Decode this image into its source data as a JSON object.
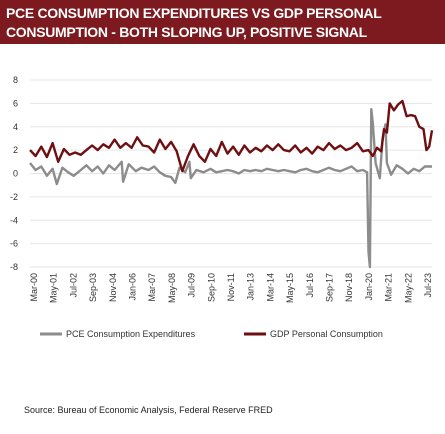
{
  "title": {
    "line1": "PCE CONSUMPTION EXPENDITURES VS GDP PERSONAL",
    "line2": "CONSUMPTION - BOTH SLOPING UP, POSITIVE SIGNAL"
  },
  "source": "Source: Bureau of Economic Analysis, Federal Reserve FRED",
  "colors": {
    "title_band": "#7d1a1f",
    "pce": "#8c8c8c",
    "gdp": "#6e0f12"
  },
  "chart_data": {
    "type": "line",
    "ylim": [
      -8,
      8
    ],
    "yticks": [
      "8",
      "6",
      "4",
      "2",
      "0",
      "-2",
      "-4",
      "-6",
      "-8"
    ],
    "x_tick_labels": [
      "Mar-00",
      "May-01",
      "Jul-02",
      "Sep-03",
      "Nov-04",
      "Jan-06",
      "Mar-07",
      "May-08",
      "Jul-09",
      "Sep-10",
      "Nov-11",
      "Jan-13",
      "Mar-14",
      "May-15",
      "Jul-16",
      "Sep-17",
      "Nov-18",
      "Jan-20",
      "Mar-21",
      "May-22",
      "Jul-23"
    ],
    "grid": true,
    "legend_position": "bottom",
    "x_start": "2000-03",
    "x_end": "2023-12",
    "series": [
      {
        "name": "PCE Consumption Expenditures",
        "color": "#8c8c8c",
        "points": [
          [
            "2000-03",
            0.9
          ],
          [
            "2000-07",
            0.3
          ],
          [
            "2000-11",
            0.6
          ],
          [
            "2001-03",
            -0.2
          ],
          [
            "2001-07",
            0.4
          ],
          [
            "2001-10",
            -0.9
          ],
          [
            "2002-02",
            0.5
          ],
          [
            "2002-06",
            0.1
          ],
          [
            "2002-10",
            -0.2
          ],
          [
            "2003-03",
            0.3
          ],
          [
            "2003-07",
            0.7
          ],
          [
            "2003-11",
            0.2
          ],
          [
            "2004-03",
            0.6
          ],
          [
            "2004-07",
            0.0
          ],
          [
            "2004-11",
            0.7
          ],
          [
            "2005-03",
            0.3
          ],
          [
            "2005-08",
            1.0
          ],
          [
            "2005-09",
            -0.7
          ],
          [
            "2006-01",
            0.8
          ],
          [
            "2006-06",
            0.2
          ],
          [
            "2006-10",
            0.5
          ],
          [
            "2007-03",
            0.3
          ],
          [
            "2007-07",
            0.6
          ],
          [
            "2007-11",
            0.1
          ],
          [
            "2008-03",
            -0.2
          ],
          [
            "2008-07",
            -0.3
          ],
          [
            "2008-10",
            -0.8
          ],
          [
            "2009-01",
            0.5
          ],
          [
            "2009-05",
            0.1
          ],
          [
            "2009-08",
            1.0
          ],
          [
            "2009-09",
            -0.4
          ],
          [
            "2010-01",
            0.3
          ],
          [
            "2010-06",
            0.1
          ],
          [
            "2010-11",
            0.4
          ],
          [
            "2011-03",
            0.1
          ],
          [
            "2011-07",
            0.2
          ],
          [
            "2011-11",
            0.3
          ],
          [
            "2012-03",
            0.2
          ],
          [
            "2012-07",
            0.0
          ],
          [
            "2012-11",
            0.3
          ],
          [
            "2013-03",
            0.2
          ],
          [
            "2013-07",
            0.3
          ],
          [
            "2013-11",
            0.2
          ],
          [
            "2014-03",
            0.4
          ],
          [
            "2014-07",
            0.3
          ],
          [
            "2014-11",
            0.2
          ],
          [
            "2015-03",
            0.3
          ],
          [
            "2015-07",
            0.2
          ],
          [
            "2015-11",
            0.1
          ],
          [
            "2016-03",
            0.3
          ],
          [
            "2016-07",
            0.4
          ],
          [
            "2016-11",
            0.2
          ],
          [
            "2017-03",
            0.1
          ],
          [
            "2017-07",
            0.3
          ],
          [
            "2017-11",
            0.5
          ],
          [
            "2018-03",
            0.3
          ],
          [
            "2018-07",
            0.2
          ],
          [
            "2018-11",
            0.4
          ],
          [
            "2019-03",
            0.6
          ],
          [
            "2019-07",
            0.2
          ],
          [
            "2019-11",
            0.3
          ],
          [
            "2020-02",
            0.1
          ],
          [
            "2020-03",
            -6.7
          ],
          [
            "2020-04",
            -12.0
          ],
          [
            "2020-05",
            5.5
          ],
          [
            "2020-06",
            4.3
          ],
          [
            "2020-08",
            0.9
          ],
          [
            "2020-11",
            -0.4
          ],
          [
            "2021-01",
            3.0
          ],
          [
            "2021-03",
            4.2
          ],
          [
            "2021-04",
            0.9
          ],
          [
            "2021-07",
            -0.1
          ],
          [
            "2021-11",
            0.7
          ],
          [
            "2022-03",
            0.4
          ],
          [
            "2022-07",
            0.0
          ],
          [
            "2022-11",
            0.4
          ],
          [
            "2023-03",
            0.2
          ],
          [
            "2023-07",
            0.6
          ],
          [
            "2023-12",
            0.6
          ]
        ]
      },
      {
        "name": "GDP Personal Consumption",
        "color": "#6e0f12",
        "points": [
          [
            "2000-03",
            2.0
          ],
          [
            "2000-07",
            1.5
          ],
          [
            "2000-11",
            2.3
          ],
          [
            "2001-03",
            1.4
          ],
          [
            "2001-07",
            2.6
          ],
          [
            "2001-11",
            1.0
          ],
          [
            "2002-03",
            2.1
          ],
          [
            "2002-07",
            1.6
          ],
          [
            "2002-11",
            1.8
          ],
          [
            "2003-03",
            1.6
          ],
          [
            "2003-07",
            2.0
          ],
          [
            "2003-11",
            2.4
          ],
          [
            "2004-03",
            2.0
          ],
          [
            "2004-07",
            2.5
          ],
          [
            "2004-11",
            2.2
          ],
          [
            "2005-03",
            2.9
          ],
          [
            "2005-07",
            2.2
          ],
          [
            "2005-11",
            2.6
          ],
          [
            "2006-03",
            2.2
          ],
          [
            "2006-07",
            3.1
          ],
          [
            "2006-11",
            2.4
          ],
          [
            "2007-03",
            2.3
          ],
          [
            "2007-07",
            1.8
          ],
          [
            "2007-11",
            2.9
          ],
          [
            "2008-03",
            2.1
          ],
          [
            "2008-07",
            2.7
          ],
          [
            "2008-11",
            1.9
          ],
          [
            "2009-03",
            0.2
          ],
          [
            "2009-07",
            1.5
          ],
          [
            "2009-11",
            2.5
          ],
          [
            "2010-03",
            1.5
          ],
          [
            "2010-07",
            1.0
          ],
          [
            "2010-11",
            2.1
          ],
          [
            "2011-03",
            1.5
          ],
          [
            "2011-07",
            2.7
          ],
          [
            "2011-11",
            1.7
          ],
          [
            "2012-03",
            2.3
          ],
          [
            "2012-07",
            1.6
          ],
          [
            "2012-11",
            2.4
          ],
          [
            "2013-03",
            1.8
          ],
          [
            "2013-07",
            2.2
          ],
          [
            "2013-11",
            1.9
          ],
          [
            "2014-03",
            2.4
          ],
          [
            "2014-07",
            2.0
          ],
          [
            "2014-11",
            2.5
          ],
          [
            "2015-03",
            2.0
          ],
          [
            "2015-07",
            1.9
          ],
          [
            "2015-11",
            2.4
          ],
          [
            "2016-03",
            1.8
          ],
          [
            "2016-07",
            2.2
          ],
          [
            "2016-11",
            1.7
          ],
          [
            "2017-03",
            2.3
          ],
          [
            "2017-07",
            2.0
          ],
          [
            "2017-11",
            2.6
          ],
          [
            "2018-03",
            2.1
          ],
          [
            "2018-07",
            2.4
          ],
          [
            "2018-11",
            2.0
          ],
          [
            "2019-03",
            2.2
          ],
          [
            "2019-07",
            2.6
          ],
          [
            "2019-11",
            1.9
          ],
          [
            "2020-03",
            2.0
          ],
          [
            "2020-06",
            1.5
          ],
          [
            "2020-09",
            2.2
          ],
          [
            "2020-12",
            1.9
          ],
          [
            "2021-02",
            3.8
          ],
          [
            "2021-04",
            3.5
          ],
          [
            "2021-06",
            6.0
          ],
          [
            "2021-09",
            5.4
          ],
          [
            "2021-12",
            5.9
          ],
          [
            "2022-03",
            6.2
          ],
          [
            "2022-06",
            4.9
          ],
          [
            "2022-09",
            5.0
          ],
          [
            "2022-12",
            4.9
          ],
          [
            "2023-03",
            4.0
          ],
          [
            "2023-06",
            3.8
          ],
          [
            "2023-08",
            2.0
          ],
          [
            "2023-10",
            2.3
          ],
          [
            "2023-12",
            3.7
          ]
        ]
      }
    ]
  }
}
